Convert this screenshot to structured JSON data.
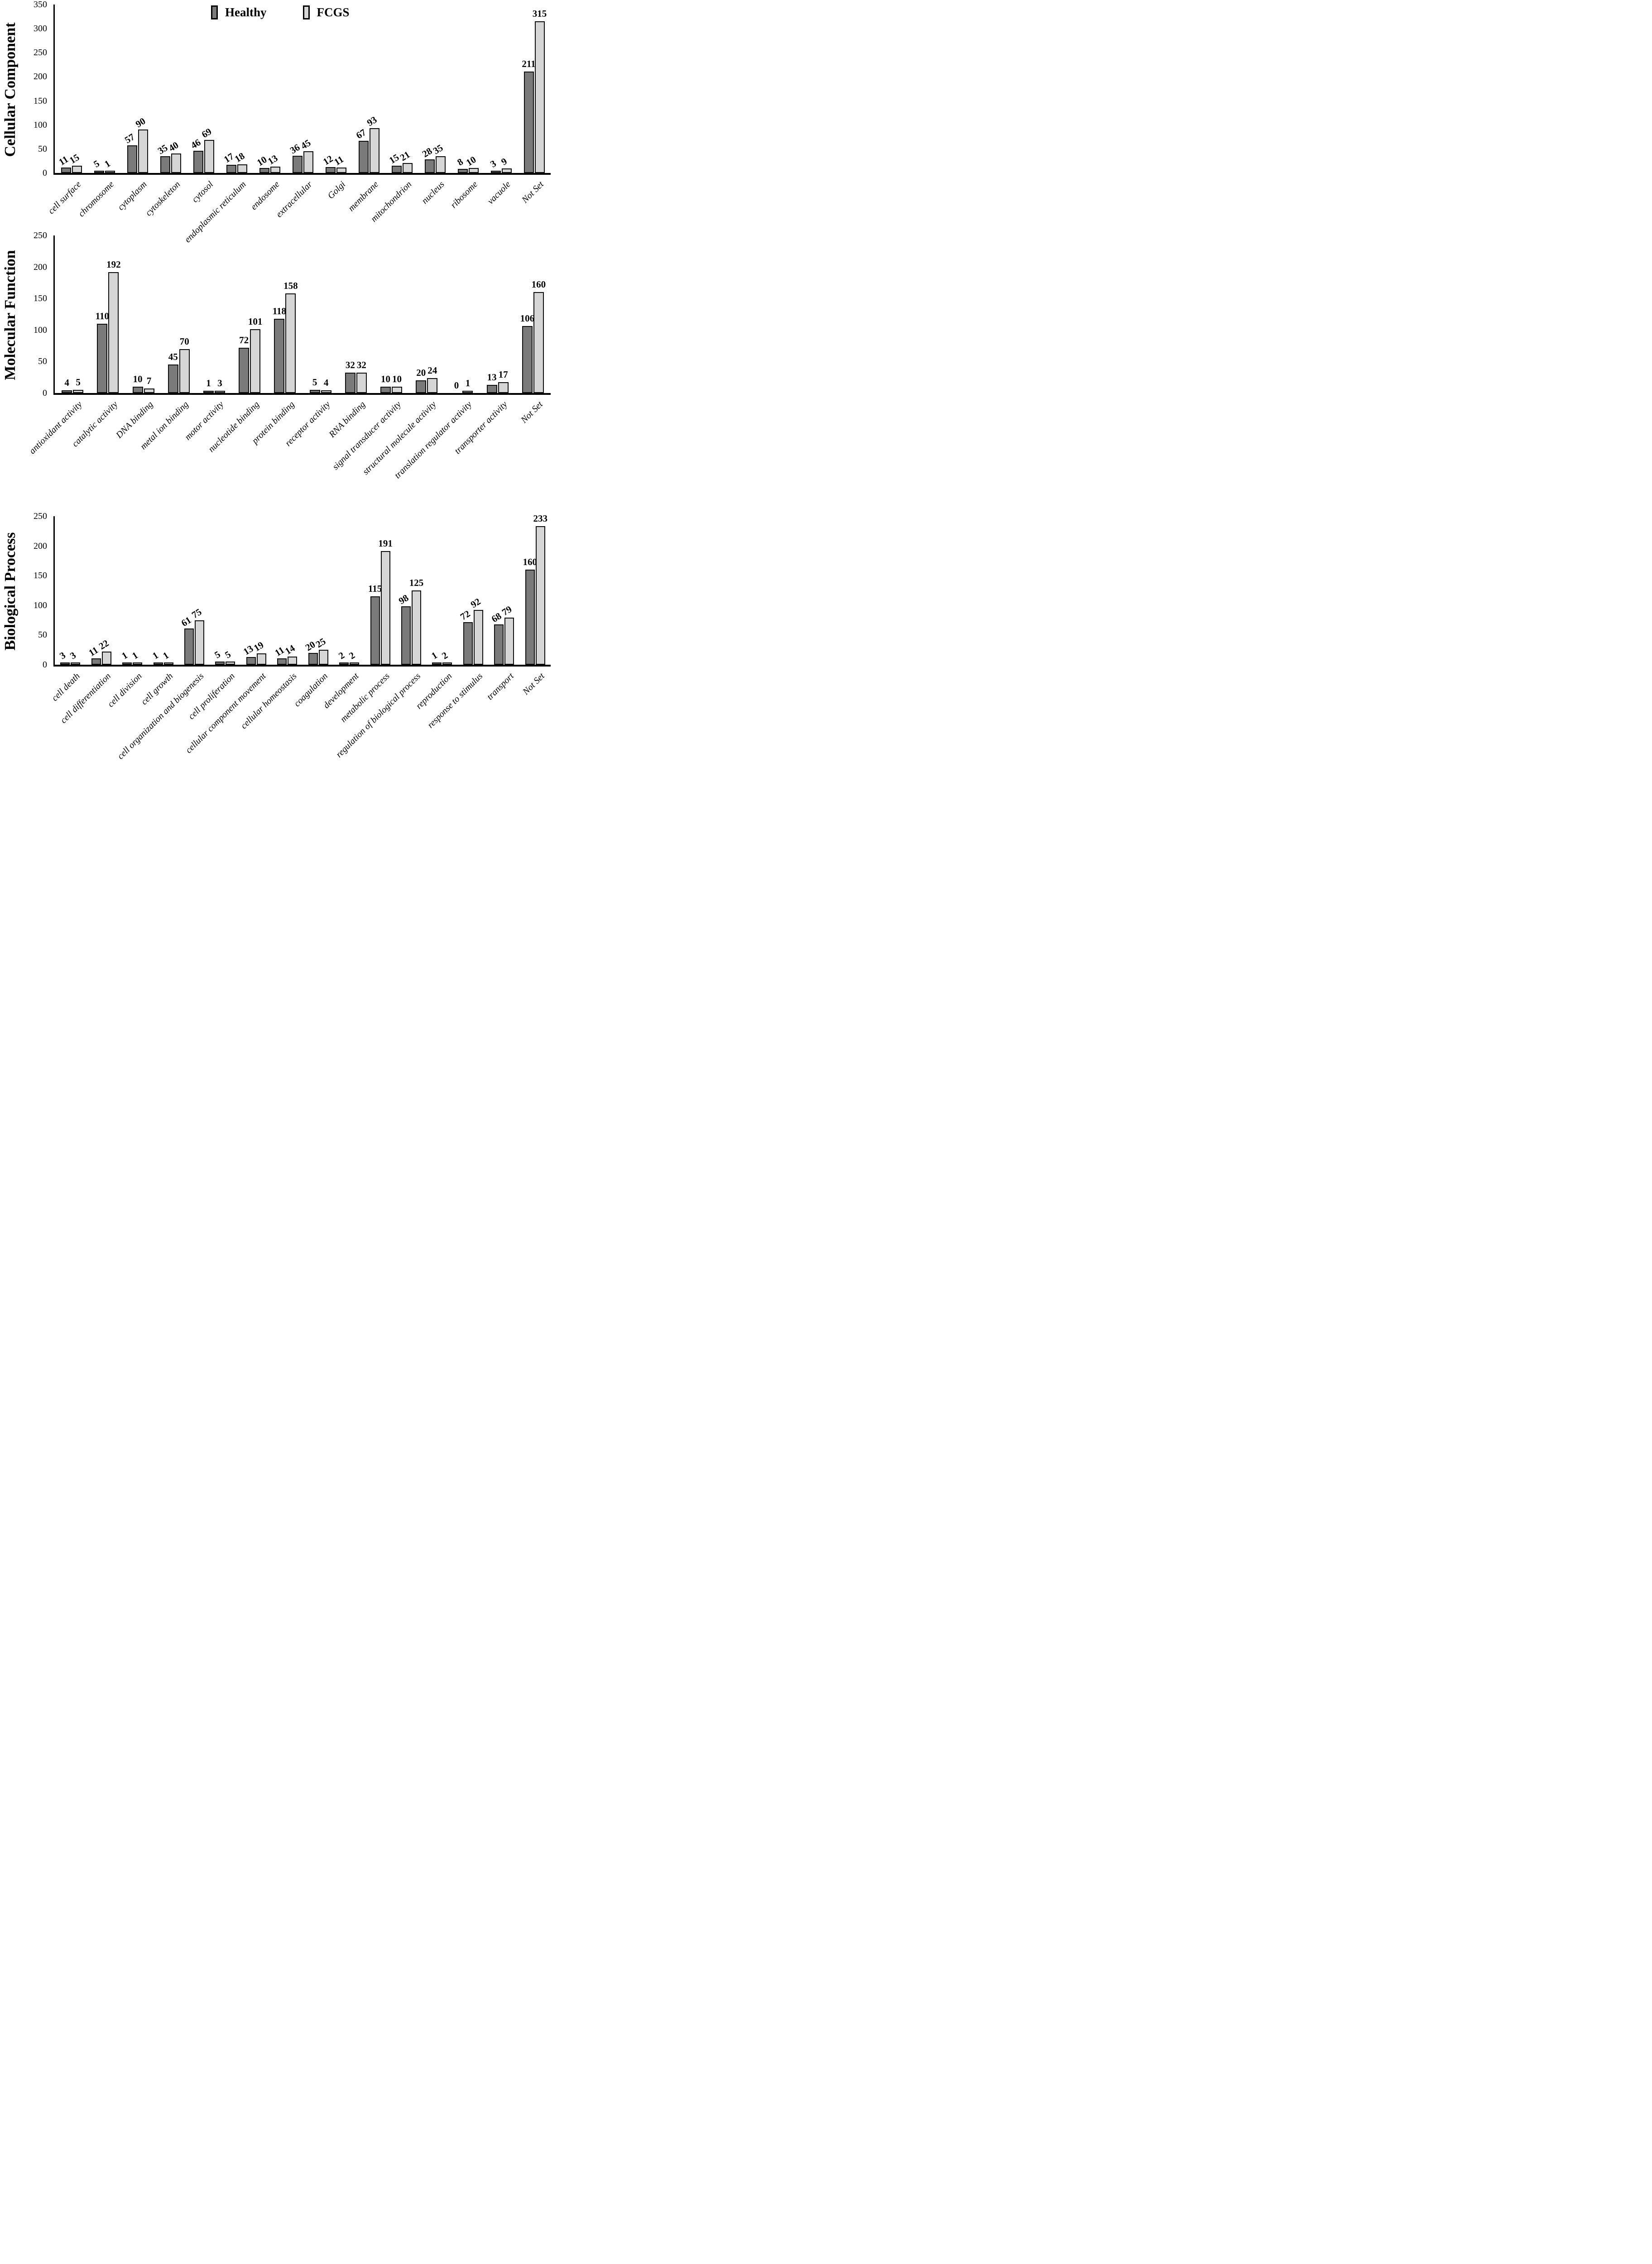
{
  "legend": {
    "items": [
      {
        "label": "Healthy",
        "color": "#7a7a7a"
      },
      {
        "label": "FCGS",
        "color": "#d6d6d6"
      }
    ]
  },
  "colors": {
    "bar_outline": "#0d0d0d",
    "axis": "#000000",
    "background": "#ffffff"
  },
  "chart_data": [
    {
      "type": "bar",
      "y_title": "Cellular Component",
      "ylim": [
        0,
        350
      ],
      "ytick_step": 50,
      "yticks": [
        0,
        50,
        100,
        150,
        200,
        250,
        300,
        350
      ],
      "grid": false,
      "legend_position": "top-center",
      "x_tick_rotation_deg": 45,
      "value_label_rotated": true,
      "categories": [
        "cell surface",
        "chromosome",
        "cytoplasm",
        "cytoskeleton",
        "cytosol",
        "endoplasmic reticulum",
        "endosome",
        "extracellular",
        "Golgi",
        "membrane",
        "mitochondrion",
        "nucleus",
        "ribosome",
        "vacuole",
        "Not Set"
      ],
      "series": [
        {
          "name": "Healthy",
          "values": [
            11,
            5,
            57,
            35,
            46,
            17,
            10,
            36,
            12,
            67,
            15,
            28,
            8,
            3,
            211
          ]
        },
        {
          "name": "FCGS",
          "values": [
            15,
            1,
            90,
            40,
            69,
            18,
            13,
            45,
            11,
            93,
            21,
            35,
            10,
            9,
            315
          ]
        }
      ]
    },
    {
      "type": "bar",
      "y_title": "Molecular Function",
      "ylim": [
        0,
        250
      ],
      "ytick_step": 50,
      "yticks": [
        0,
        50,
        100,
        150,
        200,
        250
      ],
      "grid": false,
      "x_tick_rotation_deg": 45,
      "value_label_rotated": false,
      "categories": [
        "antioxidant activity",
        "catalytic activity",
        "DNA binding",
        "metal ion binding",
        "motor activity",
        "nucleotide binding",
        "protein binding",
        "receptor activity",
        "RNA binding",
        "signal transducer activity",
        "structural molecule activity",
        "translation regulator activity",
        "transporter activity",
        "Not Set"
      ],
      "series": [
        {
          "name": "Healthy",
          "values": [
            4,
            110,
            10,
            45,
            1,
            72,
            118,
            5,
            32,
            10,
            20,
            0,
            13,
            106
          ]
        },
        {
          "name": "FCGS",
          "values": [
            5,
            192,
            7,
            70,
            3,
            101,
            158,
            4,
            32,
            10,
            24,
            1,
            17,
            160
          ]
        }
      ]
    },
    {
      "type": "bar",
      "y_title": "Biological Process",
      "ylim": [
        0,
        250
      ],
      "ytick_step": 50,
      "yticks": [
        0,
        50,
        100,
        150,
        200,
        250
      ],
      "grid": false,
      "x_tick_rotation_deg": 45,
      "value_label_rotated": true,
      "categories": [
        "cell death",
        "cell differentiation",
        "cell division",
        "cell growth",
        "cell organization and biogenesis",
        "cell proliferation",
        "cellular component movement",
        "cellular homeostasis",
        "coagulation",
        "development",
        "metabolic process",
        "regulation of biological process",
        "reproduction",
        "response to stimulus",
        "transport",
        "Not Set"
      ],
      "series": [
        {
          "name": "Healthy",
          "values": [
            3,
            11,
            1,
            1,
            61,
            5,
            13,
            11,
            20,
            2,
            115,
            98,
            1,
            72,
            68,
            160
          ]
        },
        {
          "name": "FCGS",
          "values": [
            3,
            22,
            1,
            1,
            75,
            5,
            19,
            14,
            25,
            2,
            191,
            125,
            2,
            92,
            79,
            233
          ]
        }
      ]
    }
  ]
}
